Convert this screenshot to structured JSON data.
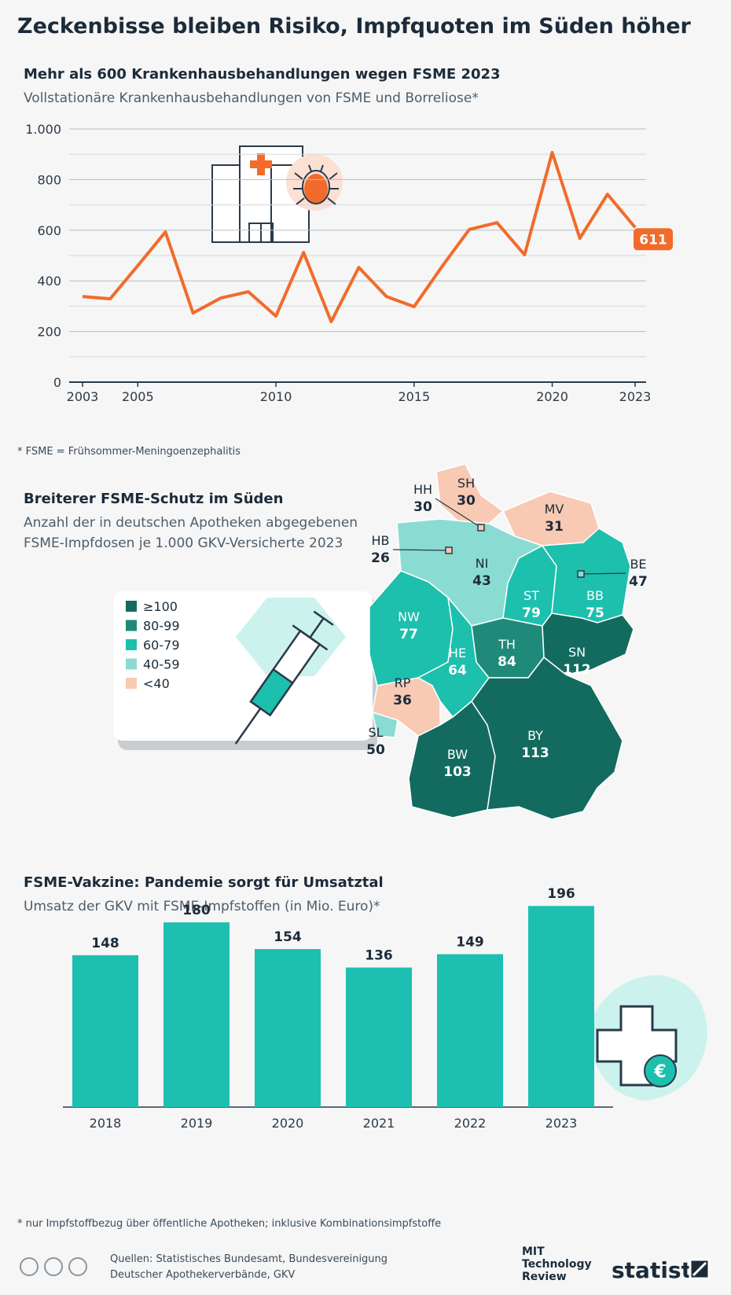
{
  "title": "Zeckenbisse bleiben Risiko, Impfquoten im Süden höher",
  "chart_data": [
    {
      "type": "line",
      "title": "Mehr als 600 Krankenhausbehandlungen wegen FSME 2023",
      "subtitle": "Vollstationäre Krankenhausbehandlungen von FSME und Borreliose*",
      "x": [
        2003,
        2004,
        2005,
        2006,
        2007,
        2008,
        2009,
        2010,
        2011,
        2012,
        2013,
        2014,
        2015,
        2016,
        2017,
        2018,
        2019,
        2020,
        2021,
        2022,
        2023
      ],
      "values": [
        338,
        329,
        460,
        593,
        273,
        332,
        357,
        261,
        512,
        239,
        453,
        338,
        298,
        455,
        603,
        630,
        503,
        907,
        568,
        742,
        611
      ],
      "color": "#f26b2a",
      "xlim": [
        2003,
        2023
      ],
      "xticks": [
        2003,
        2005,
        2010,
        2015,
        2020,
        2023
      ],
      "ylim": [
        0,
        1000
      ],
      "yticks": [
        0,
        200,
        400,
        600,
        800,
        {
          "value": 1000,
          "label": "1.000"
        }
      ],
      "minor_yticks": [
        100,
        300,
        500,
        700,
        900
      ],
      "grid": true,
      "note": "* FSME = Frühsommer-Meningoenzephalitis"
    },
    {
      "type": "choropleth",
      "title": "Breiterer FSME-Schutz im Süden",
      "subtitle": [
        "Anzahl der in deutschen Apotheken abgegebenen",
        "FSME-Impfdosen je 1.000 GKV-Versicherte 2023"
      ],
      "categories": [
        "SH",
        "HH",
        "MV",
        "HB",
        "NI",
        "BE",
        "ST",
        "BB",
        "NW",
        "HE",
        "TH",
        "SN",
        "RP",
        "SL",
        "BW",
        "BY"
      ],
      "values": [
        30,
        30,
        31,
        26,
        43,
        47,
        79,
        75,
        77,
        64,
        84,
        112,
        36,
        50,
        103,
        113
      ],
      "legend": [
        {
          "label": "≥100",
          "min": 100,
          "color": "#136b5f"
        },
        {
          "label": "80-99",
          "min": 80,
          "color": "#1f8a7a"
        },
        {
          "label": "60-79",
          "min": 60,
          "color": "#1dbfad"
        },
        {
          "label": "40-59",
          "min": 40,
          "color": "#8adcd3"
        },
        {
          "label": "<40",
          "min": 0,
          "color": "#f8c9b3"
        }
      ]
    },
    {
      "type": "bar",
      "title": "FSME-Vakzine: Pandemie sorgt für Umsatztal",
      "subtitle": "Umsatz der GKV mit FSME-Impfstoffen (in Mio. Euro)*",
      "categories": [
        "2018",
        "2019",
        "2020",
        "2021",
        "2022",
        "2023"
      ],
      "values": [
        148,
        180,
        154,
        136,
        149,
        196
      ],
      "color": "#1dbfb0",
      "ylim": [
        0,
        200
      ],
      "note": "* nur Impfstoffbezug über öffentliche Apotheken; inklusive Kombinationsimpfstoffe"
    }
  ],
  "footer": {
    "sources": [
      "Quellen: Statistisches Bundesamt, Bundesvereinigung",
      "Deutscher Apothekerverbände, GKV"
    ],
    "partner": [
      "MIT",
      "Technology",
      "Review"
    ],
    "brand": "statista"
  }
}
